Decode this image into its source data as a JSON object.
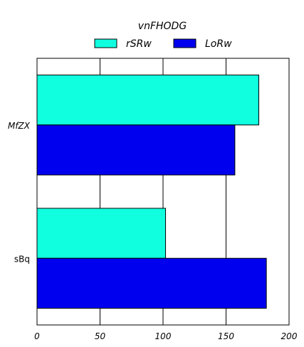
{
  "chart_data": {
    "type": "bar",
    "orientation": "horizontal",
    "title": "vnFHODG",
    "categories": [
      "MfZX",
      "sBq"
    ],
    "series": [
      {
        "name": "rSRw",
        "values": [
          176,
          102
        ],
        "color": "#10ffdf"
      },
      {
        "name": "LoRw",
        "values": [
          157,
          182
        ],
        "color": "#0000ee"
      }
    ],
    "xlim": [
      0,
      200
    ],
    "xticks": [
      0,
      50,
      100,
      150,
      200
    ],
    "grid": true,
    "legend_position": "top-center"
  }
}
